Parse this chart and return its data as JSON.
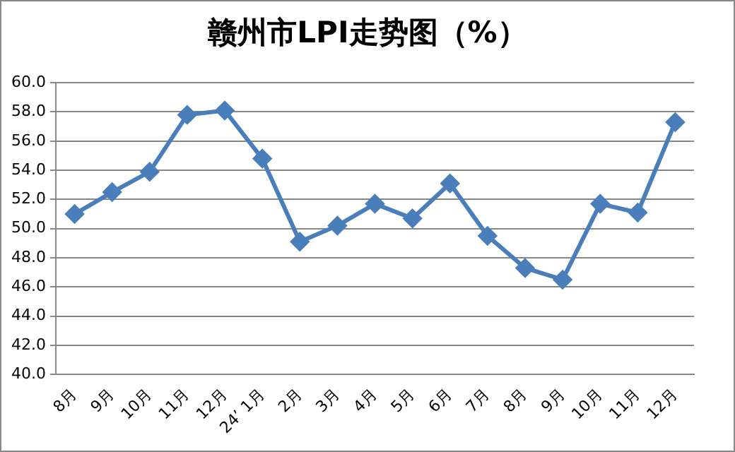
{
  "chart_data": {
    "type": "line",
    "title": "赣州市LPI走势图（%）",
    "categories": [
      "8月",
      "9月",
      "10月",
      "11月",
      "12月",
      "24’ 1月",
      "2月",
      "3月",
      "4月",
      "5月",
      "6月",
      "7月",
      "8月",
      "9月",
      "10月",
      "11月",
      "12月"
    ],
    "series": [
      {
        "color": "#4a7ebb",
        "values": [
          51.0,
          52.5,
          53.9,
          57.8,
          58.1,
          54.8,
          49.1,
          50.2,
          51.7,
          50.7,
          53.1,
          49.5,
          47.3,
          46.5,
          51.7,
          51.1,
          57.3
        ]
      }
    ],
    "ylim": [
      40,
      60
    ],
    "yticks": [
      {
        "value": 40,
        "label": "40.0"
      },
      {
        "value": 42,
        "label": "42.0"
      },
      {
        "value": 44,
        "label": "44.0"
      },
      {
        "value": 46,
        "label": "46.0"
      },
      {
        "value": 48,
        "label": "48.0"
      },
      {
        "value": 50,
        "label": "50.0"
      },
      {
        "value": 52,
        "label": "52.0"
      },
      {
        "value": 54,
        "label": "54.0"
      },
      {
        "value": 56,
        "label": "56.0"
      },
      {
        "value": 58,
        "label": "58.0"
      },
      {
        "value": 60,
        "label": "60.0"
      }
    ],
    "grid": "y",
    "legend": false,
    "marker": "diamond",
    "line_style": "solid"
  }
}
